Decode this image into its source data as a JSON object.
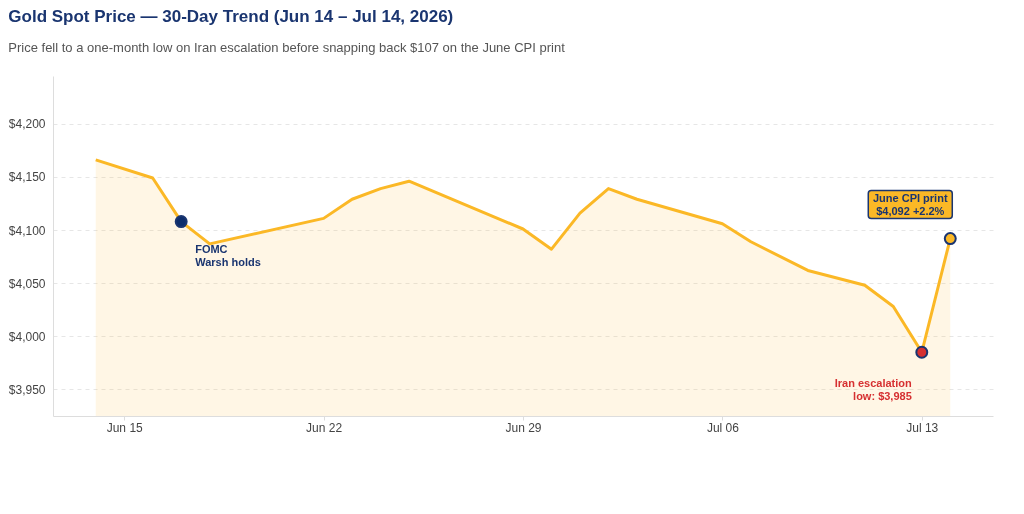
{
  "chart_data": {
    "type": "area",
    "title": "Gold Spot Price — 30-Day Trend (Jun 14 – Jul 14, 2026)",
    "subtitle": "Price fell to a one-month low on Iran escalation before snapping back $107 on the June CPI print",
    "x": [
      "2026-06-14",
      "2026-06-16",
      "2026-06-17",
      "2026-06-18",
      "2026-06-22",
      "2026-06-23",
      "2026-06-24",
      "2026-06-25",
      "2026-06-29",
      "2026-06-30",
      "2026-07-01",
      "2026-07-02",
      "2026-07-03",
      "2026-07-06",
      "2026-07-07",
      "2026-07-09",
      "2026-07-11",
      "2026-07-12",
      "2026-07-13",
      "2026-07-14"
    ],
    "series": [
      {
        "color": "#fbb826",
        "values": [
          4166,
          4149,
          4108,
          4087,
          4111,
          4129,
          4139,
          4146,
          4101,
          4082,
          4116,
          4139,
          4129,
          4106,
          4089,
          4062,
          4048,
          4028,
          3985,
          4092
        ]
      },
      {
        "type": "scatter",
        "x": [
          "2026-06-17",
          "2026-07-13",
          "2026-07-14"
        ],
        "values": [
          4108,
          3985,
          4092
        ],
        "colors": [
          "#0d2d6b",
          "#d63031",
          "#fbb826"
        ]
      }
    ],
    "xlim": [
      "2026-06-12T12:00",
      "2026-07-15T12:00"
    ],
    "xticks": [
      {
        "value": "2026-06-15",
        "label": "Jun 15"
      },
      {
        "value": "2026-06-22",
        "label": "Jun 22"
      },
      {
        "value": "2026-06-29",
        "label": "Jun 29"
      },
      {
        "value": "2026-07-06",
        "label": "Jul 06"
      },
      {
        "value": "2026-07-13",
        "label": "Jul 13"
      }
    ],
    "ylim": [
      3925,
      4245
    ],
    "yticks": [
      {
        "value": 3950,
        "label": "$3,950"
      },
      {
        "value": 4000,
        "label": "$4,000"
      },
      {
        "value": 4050,
        "label": "$4,050"
      },
      {
        "value": 4100,
        "label": "$4,100"
      },
      {
        "value": 4150,
        "label": "$4,150"
      },
      {
        "value": 4200,
        "label": "$4,200"
      }
    ],
    "grid": "y",
    "annotations": [
      {
        "text": "FOMC\nWarsh holds",
        "x": "2026-06-17",
        "y": 4108
      },
      {
        "text": "Iran escalation\nlow: $3,985",
        "x": "2026-07-13",
        "y": 3985
      },
      {
        "text": "June CPI print\n$4,092  +2.2%",
        "x": "2026-07-14",
        "y": 4092
      }
    ]
  }
}
